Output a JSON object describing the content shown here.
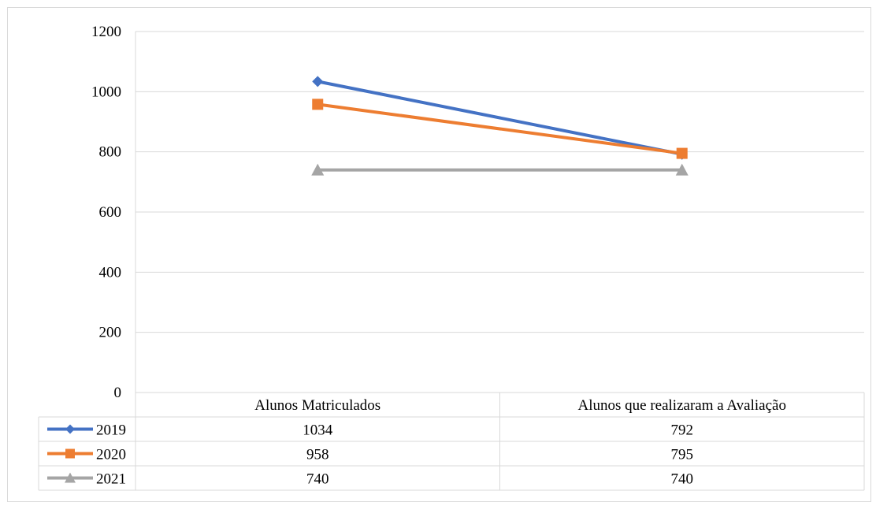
{
  "chart_data": {
    "type": "line",
    "categories": [
      "Alunos Matriculados",
      "Alunos que realizaram a Avaliação"
    ],
    "series": [
      {
        "name": "2019",
        "values": [
          1034,
          792
        ],
        "color": "#4472c4",
        "marker": "diamond"
      },
      {
        "name": "2020",
        "values": [
          958,
          795
        ],
        "color": "#ed7d31",
        "marker": "square"
      },
      {
        "name": "2021",
        "values": [
          740,
          740
        ],
        "color": "#a5a5a5",
        "marker": "triangle"
      }
    ],
    "yticks": [
      0,
      200,
      400,
      600,
      800,
      1000,
      1200
    ],
    "ylim": [
      0,
      1200
    ],
    "grid": true,
    "legend": "data-table"
  }
}
